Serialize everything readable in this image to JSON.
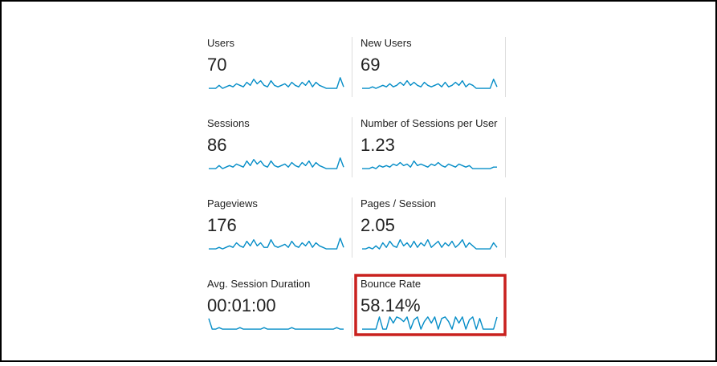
{
  "metrics": [
    {
      "label": "Users",
      "value": "70",
      "trend": [
        1,
        1,
        1,
        3,
        1,
        2,
        3,
        2,
        4,
        3,
        2,
        5,
        3,
        7,
        4,
        6,
        3,
        2,
        6,
        3,
        2,
        3,
        4,
        2,
        5,
        3,
        2,
        5,
        3,
        6,
        2,
        5,
        3,
        2,
        1,
        1,
        1,
        1,
        8,
        2
      ]
    },
    {
      "label": "New Users",
      "value": "69",
      "trend": [
        1,
        1,
        1,
        2,
        1,
        2,
        3,
        2,
        4,
        2,
        3,
        5,
        3,
        6,
        3,
        5,
        3,
        2,
        5,
        3,
        2,
        3,
        4,
        2,
        5,
        2,
        3,
        5,
        3,
        6,
        2,
        4,
        3,
        1,
        1,
        1,
        1,
        1,
        7,
        2
      ]
    },
    {
      "label": "Sessions",
      "value": "86",
      "trend": [
        1,
        1,
        1,
        3,
        1,
        2,
        3,
        2,
        4,
        3,
        2,
        6,
        3,
        7,
        4,
        6,
        3,
        2,
        6,
        3,
        2,
        3,
        4,
        2,
        5,
        3,
        2,
        5,
        3,
        6,
        2,
        5,
        3,
        2,
        1,
        1,
        1,
        1,
        8,
        2
      ]
    },
    {
      "label": "Number of Sessions per User",
      "value": "1.23",
      "trend": [
        1,
        1,
        1,
        2,
        1,
        3,
        2,
        3,
        2,
        4,
        3,
        5,
        3,
        4,
        2,
        6,
        3,
        4,
        3,
        2,
        4,
        3,
        5,
        3,
        2,
        4,
        3,
        2,
        4,
        3,
        2,
        3,
        1,
        1,
        1,
        1,
        1,
        1,
        2,
        2
      ]
    },
    {
      "label": "Pageviews",
      "value": "176",
      "trend": [
        1,
        1,
        1,
        2,
        1,
        2,
        3,
        2,
        5,
        3,
        2,
        6,
        3,
        7,
        3,
        5,
        2,
        2,
        7,
        3,
        2,
        3,
        4,
        2,
        6,
        3,
        2,
        5,
        3,
        6,
        2,
        5,
        3,
        2,
        1,
        1,
        1,
        1,
        8,
        2
      ]
    },
    {
      "label": "Pages / Session",
      "value": "2.05",
      "trend": [
        1,
        1,
        2,
        1,
        3,
        1,
        5,
        2,
        6,
        3,
        2,
        7,
        3,
        5,
        2,
        6,
        2,
        5,
        3,
        7,
        2,
        4,
        6,
        2,
        5,
        3,
        6,
        2,
        4,
        7,
        2,
        5,
        3,
        1,
        1,
        1,
        1,
        1,
        5,
        2
      ]
    },
    {
      "label": "Avg. Session Duration",
      "value": "00:01:00",
      "trend": [
        8,
        1,
        1,
        2,
        1,
        1,
        1,
        1,
        1,
        2,
        1,
        1,
        1,
        1,
        1,
        1,
        2,
        1,
        1,
        1,
        1,
        1,
        1,
        1,
        2,
        1,
        1,
        1,
        1,
        1,
        1,
        1,
        1,
        1,
        1,
        1,
        1,
        2,
        1,
        1
      ]
    },
    {
      "label": "Bounce Rate",
      "value": "58.14%",
      "trend": [
        1,
        1,
        1,
        1,
        1,
        9,
        1,
        1,
        9,
        5,
        9,
        8,
        6,
        9,
        1,
        7,
        9,
        1,
        6,
        9,
        5,
        9,
        1,
        8,
        9,
        6,
        1,
        9,
        5,
        9,
        1,
        7,
        9,
        1,
        8,
        1,
        1,
        1,
        1,
        9
      ]
    }
  ]
}
